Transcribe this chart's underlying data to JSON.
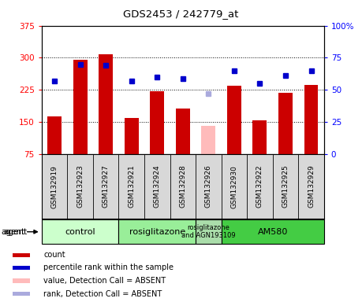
{
  "title": "GDS2453 / 242779_at",
  "samples": [
    "GSM132919",
    "GSM132923",
    "GSM132927",
    "GSM132921",
    "GSM132924",
    "GSM132928",
    "GSM132926",
    "GSM132930",
    "GSM132922",
    "GSM132925",
    "GSM132929"
  ],
  "counts": [
    163,
    295,
    308,
    160,
    222,
    182,
    null,
    235,
    153,
    218,
    237
  ],
  "absent_count": [
    null,
    null,
    null,
    null,
    null,
    null,
    140,
    null,
    null,
    null,
    null
  ],
  "percentile_ranks": [
    57,
    70,
    69,
    57,
    60,
    59,
    null,
    65,
    55,
    61,
    65
  ],
  "absent_rank": [
    null,
    null,
    null,
    null,
    null,
    null,
    47,
    null,
    null,
    null,
    null
  ],
  "ylim_left": [
    75,
    375
  ],
  "ylim_right": [
    0,
    100
  ],
  "yticks_left": [
    75,
    150,
    225,
    300,
    375
  ],
  "yticks_right": [
    0,
    25,
    50,
    75,
    100
  ],
  "groups": [
    {
      "label": "control",
      "start": 0,
      "end": 3,
      "color": "#ccffcc"
    },
    {
      "label": "rosiglitazone",
      "start": 3,
      "end": 6,
      "color": "#99ee99"
    },
    {
      "label": "rosiglitazone\nand AGN193109",
      "start": 6,
      "end": 7,
      "color": "#aaddaa"
    },
    {
      "label": "AM580",
      "start": 7,
      "end": 11,
      "color": "#44cc44"
    }
  ],
  "bar_color_present": "#cc0000",
  "bar_color_absent": "#ffbbbb",
  "dot_color_present": "#0000cc",
  "dot_color_absent": "#aaaadd",
  "bar_width": 0.55,
  "legend_items": [
    {
      "color": "#cc0000",
      "label": "count",
      "marker": "s"
    },
    {
      "color": "#0000cc",
      "label": "percentile rank within the sample",
      "marker": "s"
    },
    {
      "color": "#ffbbbb",
      "label": "value, Detection Call = ABSENT",
      "marker": "s"
    },
    {
      "color": "#aaaadd",
      "label": "rank, Detection Call = ABSENT",
      "marker": "s"
    }
  ]
}
